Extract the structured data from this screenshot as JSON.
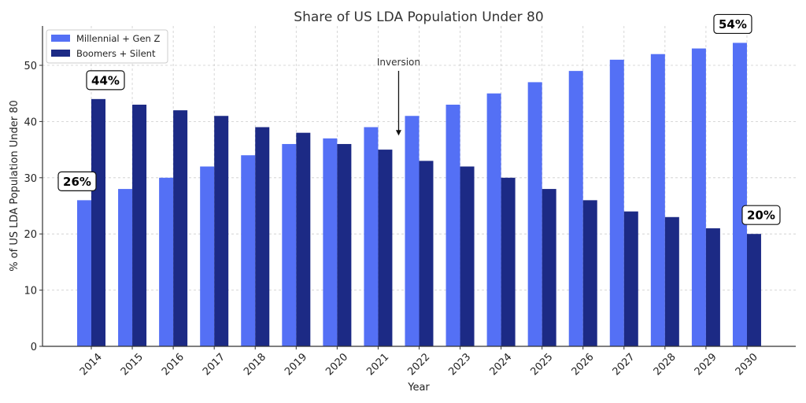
{
  "chart_data": {
    "type": "bar",
    "title": "Share of US LDA Population Under 80",
    "xlabel": "Year",
    "ylabel": "% of US LDA Population Under 80",
    "categories": [
      "2014",
      "2015",
      "2016",
      "2017",
      "2018",
      "2019",
      "2020",
      "2021",
      "2022",
      "2023",
      "2024",
      "2025",
      "2026",
      "2027",
      "2028",
      "2029",
      "2030"
    ],
    "series": [
      {
        "name": "Millennial + Gen Z",
        "color": "#5470f5",
        "values": [
          26,
          28,
          30,
          32,
          34,
          36,
          37,
          39,
          41,
          43,
          45,
          47,
          49,
          51,
          52,
          53,
          54
        ]
      },
      {
        "name": "Boomers + Silent",
        "color": "#1c2a85",
        "values": [
          44,
          43,
          42,
          41,
          39,
          38,
          36,
          35,
          33,
          32,
          30,
          28,
          26,
          24,
          23,
          21,
          20
        ]
      }
    ],
    "ylim": [
      0,
      57
    ],
    "yticks": [
      0,
      10,
      20,
      30,
      40,
      50
    ],
    "grid": true,
    "legend_position": "top-left",
    "annotations": [
      {
        "type": "arrow",
        "text": "Inversion",
        "category_between": [
          "2021",
          "2022"
        ],
        "text_y": 50.7,
        "arrow_to_y": 37.5
      }
    ],
    "callouts": [
      {
        "text": "26%",
        "series": 0,
        "category": "2014"
      },
      {
        "text": "44%",
        "series": 1,
        "category": "2014"
      },
      {
        "text": "54%",
        "series": 0,
        "category": "2030"
      },
      {
        "text": "20%",
        "series": 1,
        "category": "2030"
      }
    ]
  }
}
